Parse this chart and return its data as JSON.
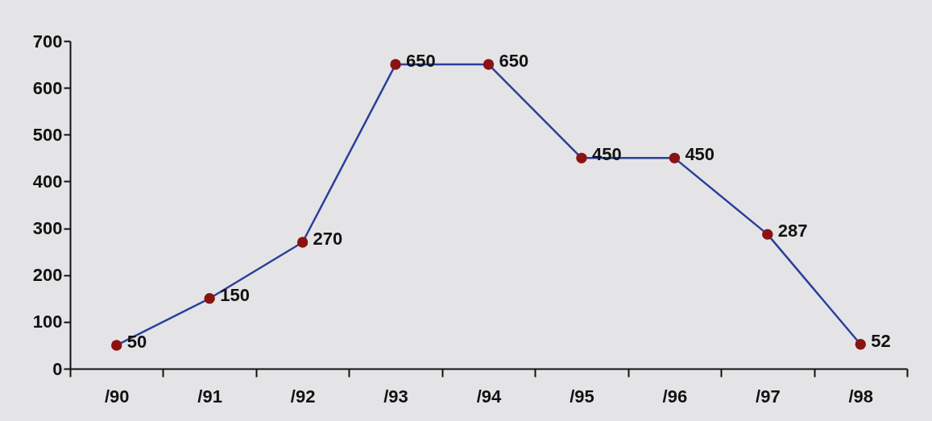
{
  "chart_data": {
    "type": "line",
    "categories": [
      "/90",
      "/91",
      "/92",
      "/93",
      "/94",
      "/95",
      "/96",
      "/97",
      "/98"
    ],
    "series": [
      {
        "color": "#2b3f9c",
        "colors": [
          "#8b1212",
          "#8b1212",
          "#8b1212",
          "#8b1212",
          "#8b1212",
          "#8b1212",
          "#8b1212",
          "#8b1212",
          "#8b1212"
        ],
        "values": [
          50,
          150,
          270,
          650,
          650,
          450,
          450,
          287,
          52
        ]
      }
    ],
    "marker": "circle",
    "ylim": [
      0,
      700
    ],
    "yticks": [
      0,
      100,
      200,
      300,
      400,
      500,
      600,
      700
    ],
    "data_labels": true,
    "grid": false,
    "line_style": "solid"
  }
}
